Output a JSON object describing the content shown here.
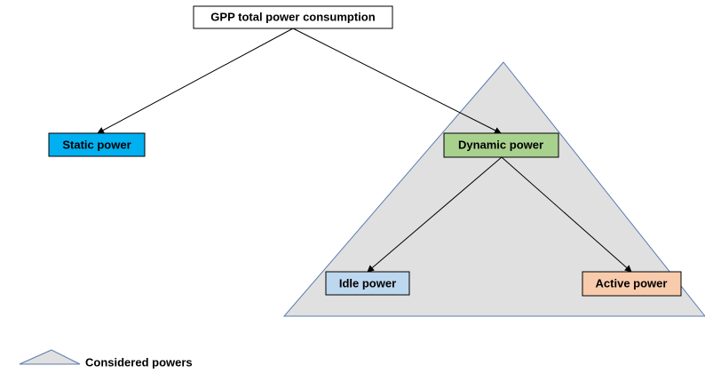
{
  "nodes": [
    {
      "label": "GPP total power consumption"
    },
    {
      "label": "Static power"
    },
    {
      "label": "Dynamic power"
    },
    {
      "label": "Idle power"
    },
    {
      "label": "Active power"
    }
  ],
  "legend": {
    "label": "Considered powers"
  }
}
